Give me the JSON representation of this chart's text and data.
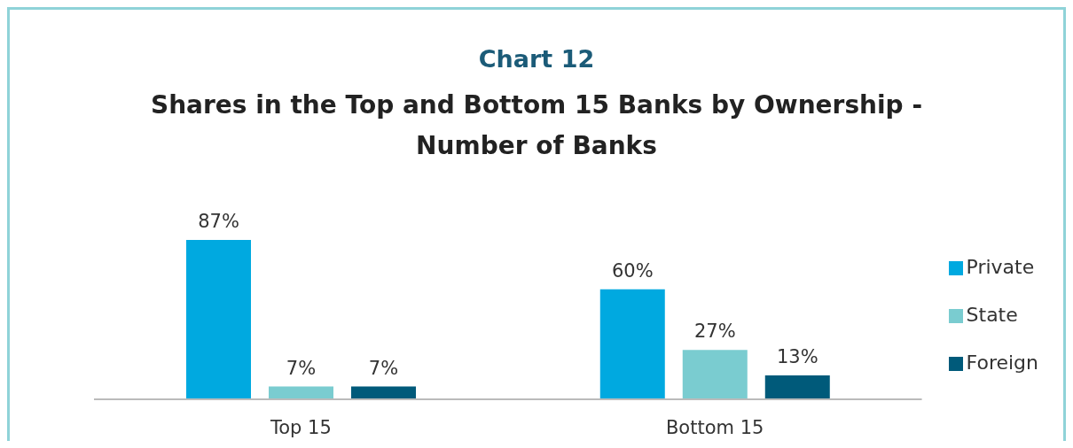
{
  "chart_data": {
    "type": "bar",
    "title": "Chart 12",
    "subtitle": "Shares in the Top and Bottom 15 Banks by Ownership -Number of Banks",
    "categories": [
      "Top 15",
      "Bottom 15"
    ],
    "series": [
      {
        "name": "Private",
        "color": "#00a9e0",
        "values": [
          87,
          60
        ],
        "value_labels": [
          "87%",
          "60%"
        ]
      },
      {
        "name": "State",
        "color": "#7accd0",
        "values": [
          7,
          27
        ],
        "value_labels": [
          "7%",
          "27%"
        ]
      },
      {
        "name": "Foreign",
        "color": "#005a7a",
        "values": [
          7,
          13
        ],
        "value_labels": [
          "7%",
          "13%"
        ]
      }
    ],
    "legend": "right",
    "grid": false
  }
}
